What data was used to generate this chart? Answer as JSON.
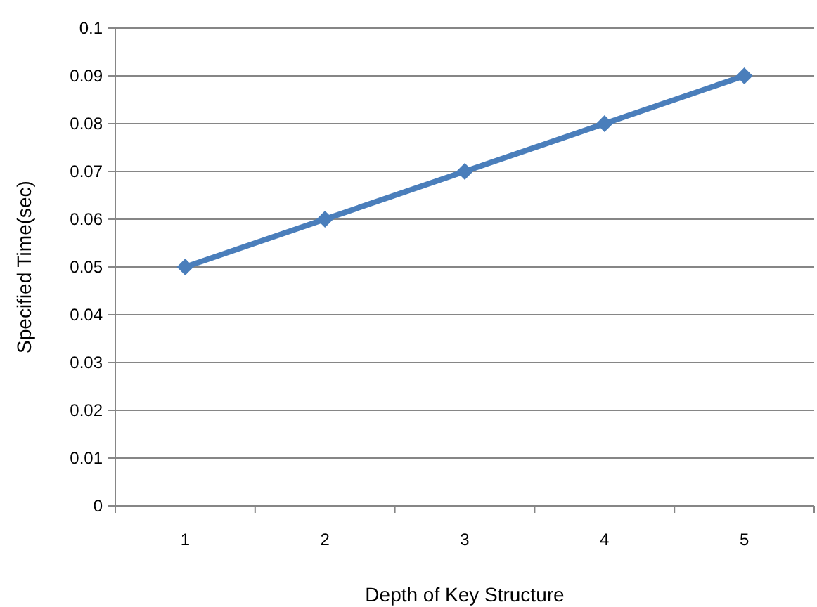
{
  "chart_data": {
    "type": "line",
    "xlabel": "Depth of Key Structure",
    "ylabel": "Specified Time(sec)",
    "categories": [
      "1",
      "2",
      "3",
      "4",
      "5"
    ],
    "series": [
      {
        "color": "#4a7ebb",
        "values": [
          0.05,
          0.06,
          0.07,
          0.08,
          0.09
        ]
      }
    ],
    "ylim": [
      0,
      0.1
    ],
    "yticks": [
      0,
      0.01,
      0.02,
      0.03,
      0.04,
      0.05,
      0.06,
      0.07,
      0.08,
      0.09,
      0.1
    ],
    "grid": "y",
    "marker": "diamond",
    "line_style": "solid"
  }
}
